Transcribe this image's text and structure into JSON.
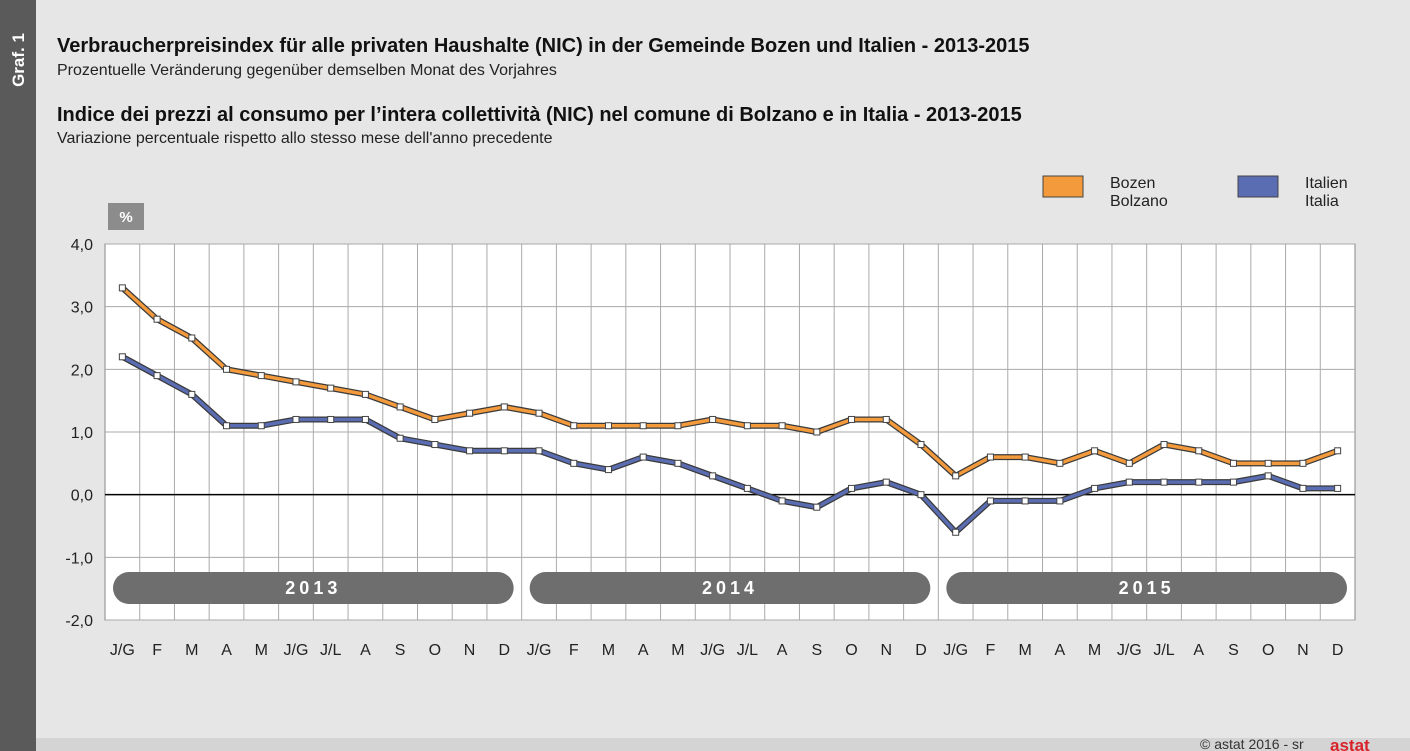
{
  "graf_label": "Graf. 1",
  "chart_data": {
    "type": "line",
    "title": "Verbraucherpreisindex für alle privaten Haushalte (NIC) in der Gemeinde Bozen und Italien - 2013-2015",
    "subtitle": "Prozentuelle Veränderung gegenüber demselben Monat des Vorjahres",
    "title_it": "Indice dei prezzi al consumo per l’intera collettività (NIC) nel comune di Bolzano e in Italia - 2013-2015",
    "subtitle_it": "Variazione percentuale rispetto allo stesso mese dell'anno precedente",
    "y_unit": "%",
    "categories": [
      "J/G",
      "F",
      "M",
      "A",
      "M",
      "J/G",
      "J/L",
      "A",
      "S",
      "O",
      "N",
      "D",
      "J/G",
      "F",
      "M",
      "A",
      "M",
      "J/G",
      "J/L",
      "A",
      "S",
      "O",
      "N",
      "D",
      "J/G",
      "F",
      "M",
      "A",
      "M",
      "J/G",
      "J/L",
      "A",
      "S",
      "O",
      "N",
      "D"
    ],
    "years": [
      "2013",
      "2014",
      "2015"
    ],
    "series": [
      {
        "name": "Bozen Bolzano",
        "color": "#f39a3c",
        "values": [
          3.3,
          2.8,
          2.5,
          2.0,
          1.9,
          1.8,
          1.7,
          1.6,
          1.4,
          1.2,
          1.3,
          1.4,
          1.3,
          1.1,
          1.1,
          1.1,
          1.1,
          1.2,
          1.1,
          1.1,
          1.0,
          1.2,
          1.2,
          0.8,
          0.3,
          0.6,
          0.6,
          0.5,
          0.7,
          0.5,
          0.8,
          0.7,
          0.5,
          0.5,
          0.5,
          0.7
        ]
      },
      {
        "name": "Italien Italia",
        "color": "#5a6db3",
        "values": [
          2.2,
          1.9,
          1.6,
          1.1,
          1.1,
          1.2,
          1.2,
          1.2,
          0.9,
          0.8,
          0.7,
          0.7,
          0.7,
          0.5,
          0.4,
          0.6,
          0.5,
          0.3,
          0.1,
          -0.1,
          -0.2,
          0.1,
          0.2,
          0.0,
          -0.6,
          -0.1,
          -0.1,
          -0.1,
          0.1,
          0.2,
          0.2,
          0.2,
          0.2,
          0.3,
          0.1,
          0.1
        ]
      }
    ],
    "ylim": [
      -2,
      4
    ],
    "yticks": [
      {
        "value": -2,
        "label": "-2,0"
      },
      {
        "value": -1,
        "label": "-1,0"
      },
      {
        "value": 0,
        "label": "0,0"
      },
      {
        "value": 1,
        "label": "1,0"
      },
      {
        "value": 2,
        "label": "2,0"
      },
      {
        "value": 3,
        "label": "3,0"
      },
      {
        "value": 4,
        "label": "4,0"
      }
    ],
    "grid": true
  },
  "footer": {
    "copyright": "© astat 2016 - sr",
    "logo": "astat"
  }
}
